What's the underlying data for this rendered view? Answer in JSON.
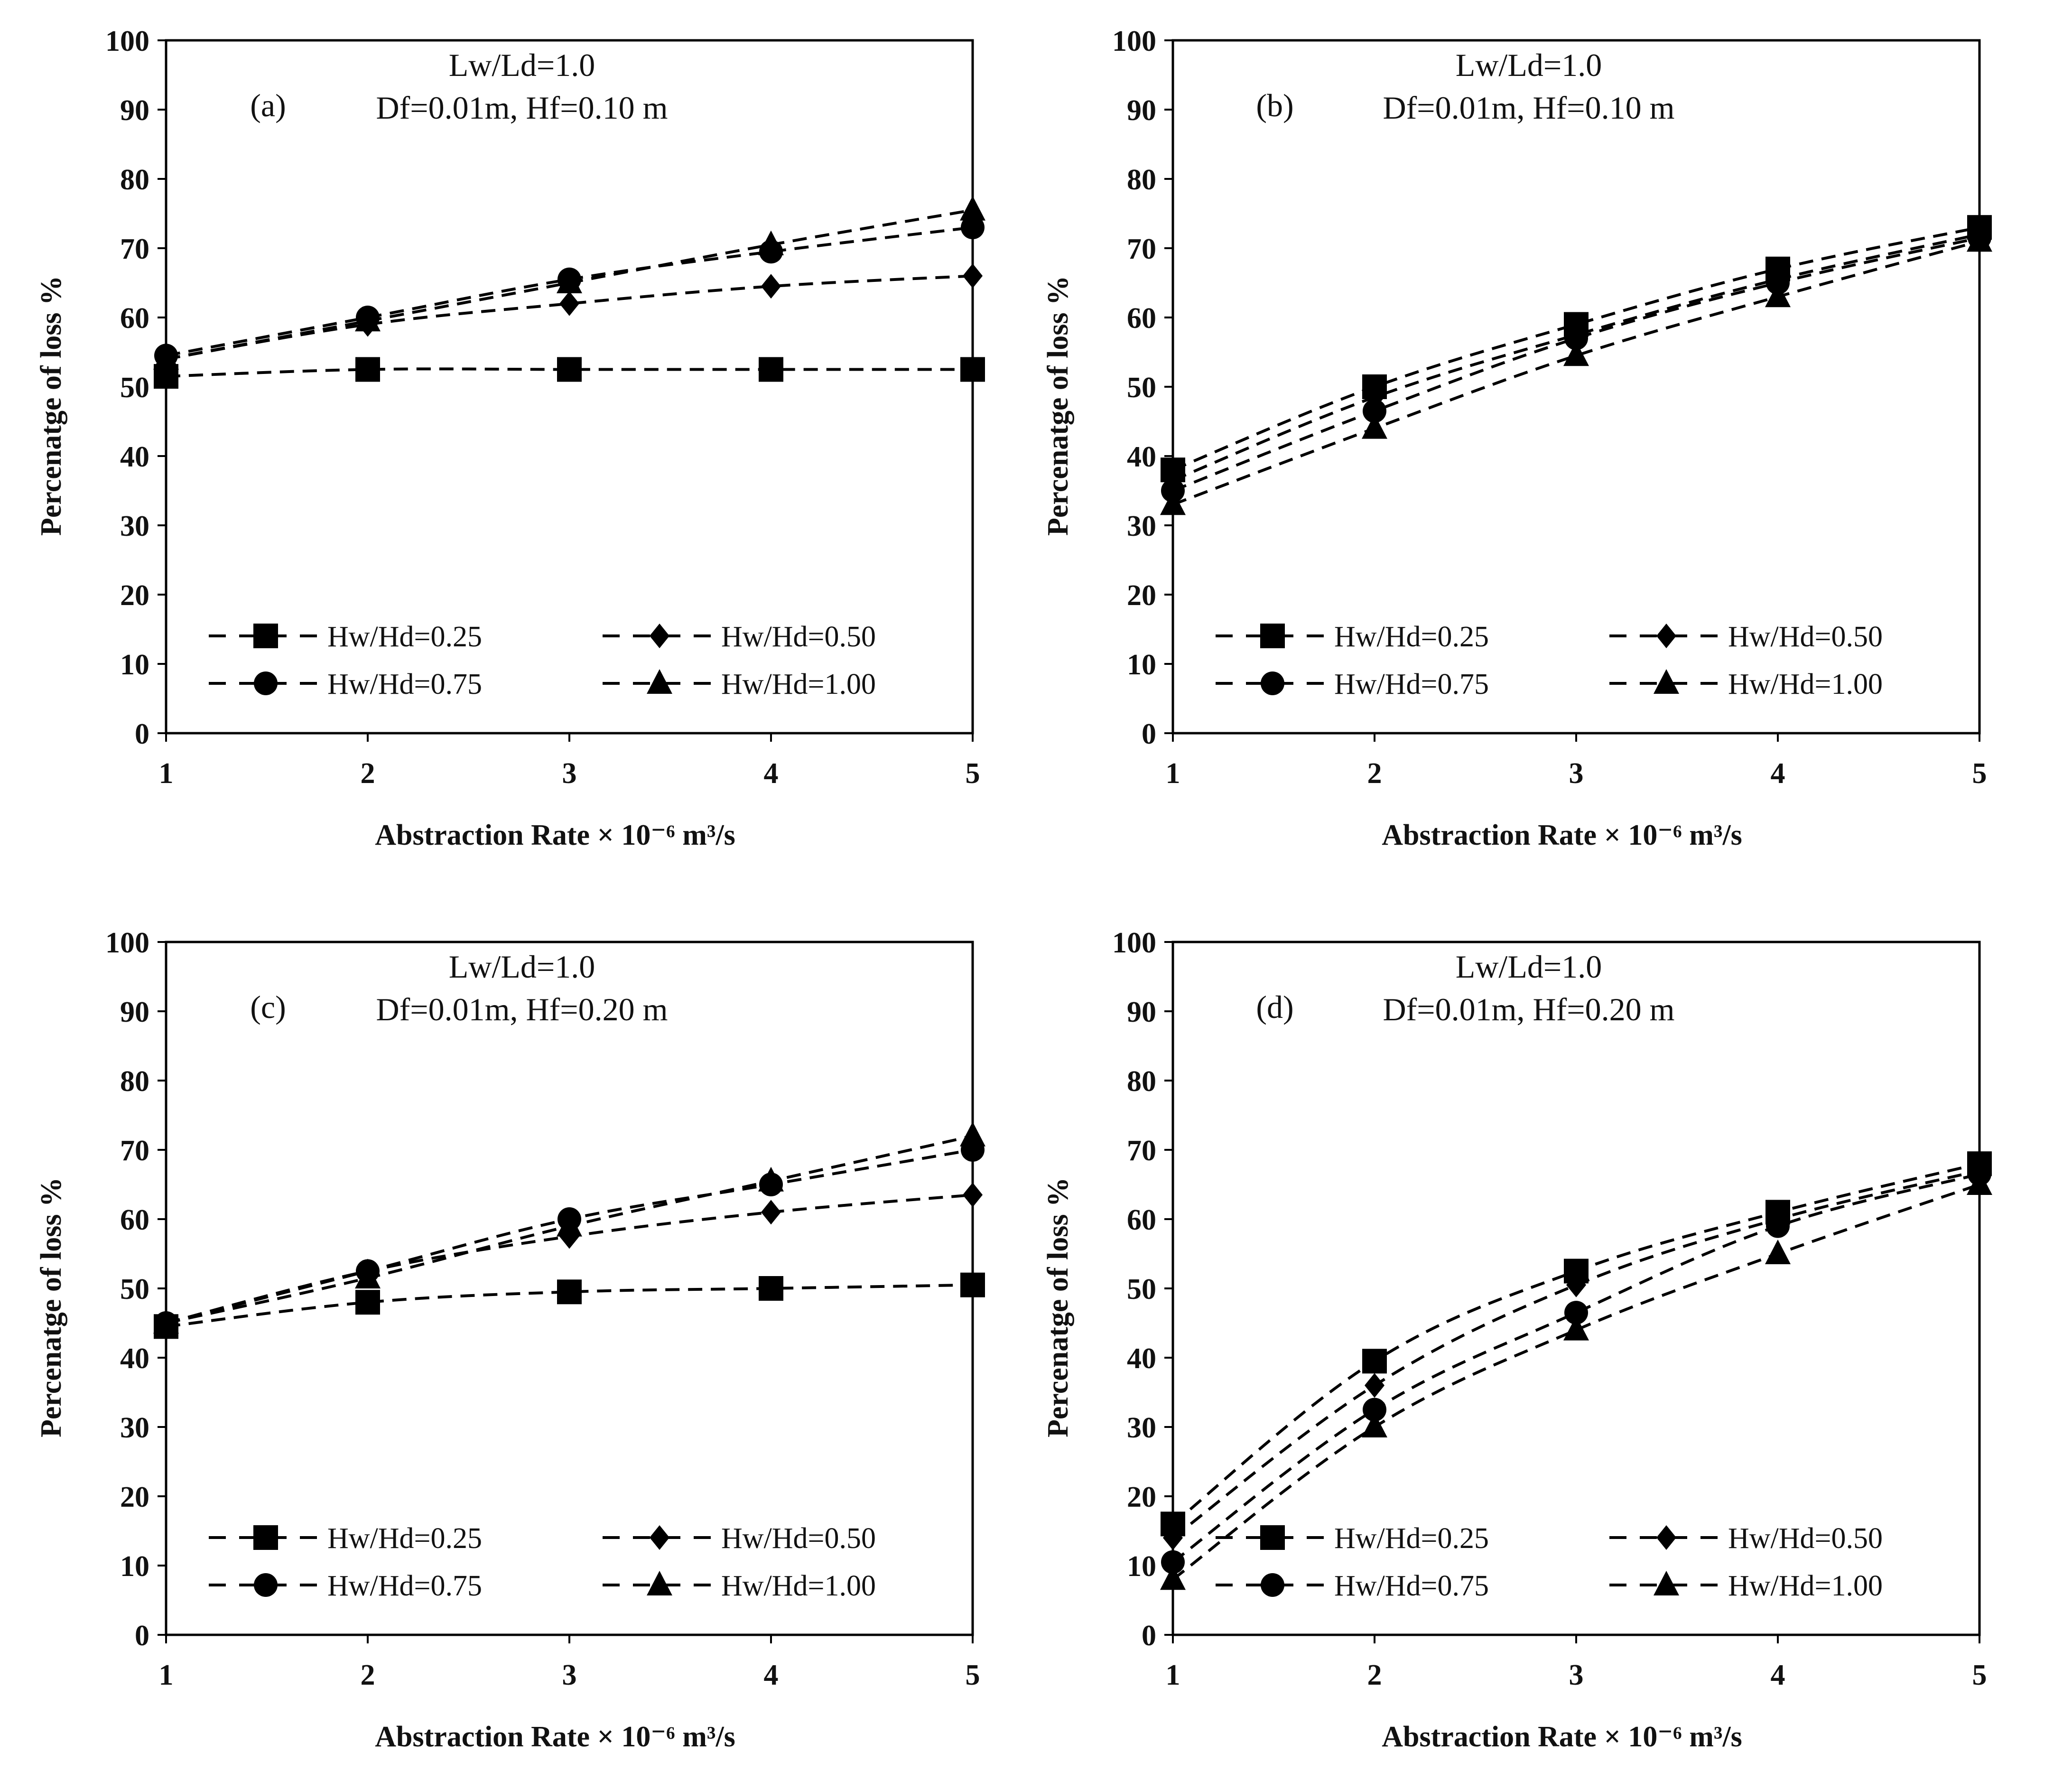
{
  "chart_data": [
    {
      "id": "a",
      "type": "line",
      "panel_label": "(a)",
      "annotation_lines": [
        "Lw/Ld=1.0",
        "Df=0.01m, Hf=0.10 m"
      ],
      "xlabel_main": "Abstraction Rate",
      "xlabel_unit": "× 10⁻⁶  m³/s",
      "ylabel": "Percenatge of loss %",
      "xlim": [
        1,
        5
      ],
      "ylim": [
        0,
        100
      ],
      "xticks": [
        1,
        2,
        3,
        4,
        5
      ],
      "yticks": [
        0,
        10,
        20,
        30,
        40,
        50,
        60,
        70,
        80,
        90,
        100
      ],
      "x": [
        1,
        2,
        3,
        4,
        5
      ],
      "series": [
        {
          "name": "Hw/Hd=0.25",
          "marker": "square",
          "values": [
            51.5,
            52.5,
            52.5,
            52.5,
            52.5
          ]
        },
        {
          "name": "Hw/Hd=0.50",
          "marker": "diamond",
          "values": [
            54,
            59,
            62,
            64.5,
            66
          ]
        },
        {
          "name": "Hw/Hd=0.75",
          "marker": "circle",
          "values": [
            54.5,
            60,
            65.5,
            69.5,
            73
          ]
        },
        {
          "name": "Hw/Hd=1.00",
          "marker": "triangle",
          "values": [
            54,
            59.5,
            65,
            70.5,
            75.5
          ]
        }
      ]
    },
    {
      "id": "b",
      "type": "line",
      "panel_label": "(b)",
      "annotation_lines": [
        "Lw/Ld=1.0",
        "Df=0.01m, Hf=0.10 m"
      ],
      "xlabel_main": "Abstraction Rate",
      "xlabel_unit": "× 10⁻⁶  m³/s",
      "ylabel": "Percenatge of loss %",
      "xlim": [
        1,
        5
      ],
      "ylim": [
        0,
        100
      ],
      "xticks": [
        1,
        2,
        3,
        4,
        5
      ],
      "yticks": [
        0,
        10,
        20,
        30,
        40,
        50,
        60,
        70,
        80,
        90,
        100
      ],
      "x": [
        1,
        2,
        3,
        4,
        5
      ],
      "series": [
        {
          "name": "Hw/Hd=0.25",
          "marker": "square",
          "values": [
            38,
            50,
            59,
            67,
            73
          ]
        },
        {
          "name": "Hw/Hd=0.50",
          "marker": "diamond",
          "values": [
            36.5,
            48.5,
            57.5,
            65.5,
            72
          ]
        },
        {
          "name": "Hw/Hd=0.75",
          "marker": "circle",
          "values": [
            35,
            46.5,
            57,
            65,
            71.5
          ]
        },
        {
          "name": "Hw/Hd=1.00",
          "marker": "triangle",
          "values": [
            33,
            44,
            54.5,
            63,
            71
          ]
        }
      ]
    },
    {
      "id": "c",
      "type": "line",
      "panel_label": "(c)",
      "annotation_lines": [
        "Lw/Ld=1.0",
        "Df=0.01m, Hf=0.20 m"
      ],
      "xlabel_main": "Abstraction Rate",
      "xlabel_unit": "× 10⁻⁶  m³/s",
      "ylabel": "Percenatge of loss %",
      "xlim": [
        1,
        5
      ],
      "ylim": [
        0,
        100
      ],
      "xticks": [
        1,
        2,
        3,
        4,
        5
      ],
      "yticks": [
        0,
        10,
        20,
        30,
        40,
        50,
        60,
        70,
        80,
        90,
        100
      ],
      "x": [
        1,
        2,
        3,
        4,
        5
      ],
      "series": [
        {
          "name": "Hw/Hd=0.25",
          "marker": "square",
          "values": [
            44.5,
            48,
            49.5,
            50,
            50.5
          ]
        },
        {
          "name": "Hw/Hd=0.50",
          "marker": "diamond",
          "values": [
            45,
            52.5,
            57.5,
            61,
            63.5
          ]
        },
        {
          "name": "Hw/Hd=0.75",
          "marker": "circle",
          "values": [
            45,
            52.5,
            60,
            65,
            70
          ]
        },
        {
          "name": "Hw/Hd=1.00",
          "marker": "triangle",
          "values": [
            45,
            51.5,
            59,
            65.5,
            72
          ]
        }
      ]
    },
    {
      "id": "d",
      "type": "line",
      "panel_label": "(d)",
      "annotation_lines": [
        "Lw/Ld=1.0",
        "Df=0.01m, Hf=0.20 m"
      ],
      "xlabel_main": "Abstraction Rate",
      "xlabel_unit": "× 10⁻⁶  m³/s",
      "ylabel": "Percenatge of loss %",
      "xlim": [
        1,
        5
      ],
      "ylim": [
        0,
        100
      ],
      "xticks": [
        1,
        2,
        3,
        4,
        5
      ],
      "yticks": [
        0,
        10,
        20,
        30,
        40,
        50,
        60,
        70,
        80,
        90,
        100
      ],
      "x": [
        1,
        2,
        3,
        4,
        5
      ],
      "series": [
        {
          "name": "Hw/Hd=0.25",
          "marker": "square",
          "values": [
            16,
            39.5,
            52.5,
            61,
            68
          ]
        },
        {
          "name": "Hw/Hd=0.50",
          "marker": "diamond",
          "values": [
            14,
            36,
            50.5,
            60,
            67
          ]
        },
        {
          "name": "Hw/Hd=0.75",
          "marker": "circle",
          "values": [
            10.5,
            32.5,
            46.5,
            59,
            66.5
          ]
        },
        {
          "name": "Hw/Hd=1.00",
          "marker": "triangle",
          "values": [
            8,
            30,
            44,
            55,
            65
          ]
        }
      ]
    }
  ]
}
